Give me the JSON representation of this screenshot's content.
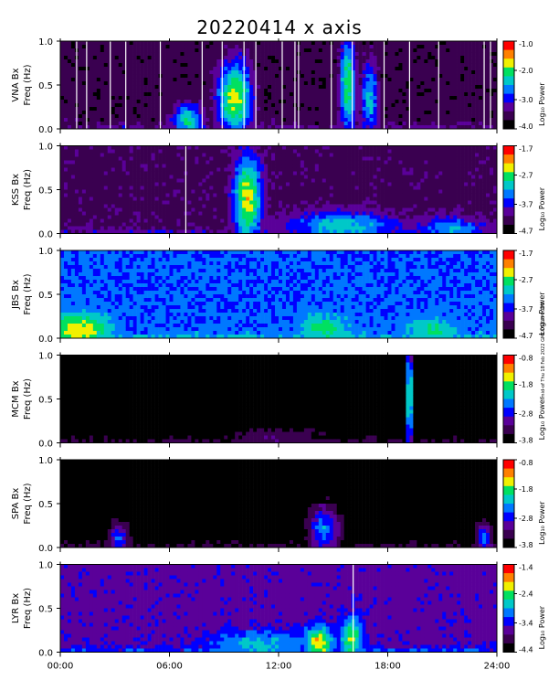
{
  "figure_title": "20220414  x axis",
  "side_note": "mid-of Thu 18 Feb 2022 GMT-058 PM GMT",
  "colors": {
    "scale": [
      "#000000",
      "#3a0050",
      "#5a0099",
      "#0000ff",
      "#0078ff",
      "#00c8c8",
      "#00e060",
      "#f0f000",
      "#ff8000",
      "#ff0000"
    ],
    "background": "#ffffff",
    "axis": "#000000",
    "gap_line": "#ffffff"
  },
  "chart_data": [
    {
      "type": "heatmap",
      "station_label": "VNA Bx",
      "ylabel": "Freq (Hz)",
      "colorbar_label": "Log₁₀ Power",
      "colorbar_ticks": [
        "-1.0",
        "-2.0",
        "-3.0",
        "-4.0"
      ],
      "colorbar_range": [
        -4.0,
        -1.0
      ],
      "x_range_hours": [
        0,
        24
      ],
      "ylim": [
        0,
        1.0
      ],
      "y_ticks": [
        "0.0",
        "0.5",
        "1.0"
      ],
      "gap_lines_hours": [
        0.9,
        1.45,
        2.75,
        3.6,
        5.5,
        7.8,
        8.9,
        10.1,
        10.75,
        12.2,
        12.9,
        13.1,
        14.9,
        16.05,
        17.8,
        19.2,
        20.8,
        23.3,
        23.65
      ],
      "background_level": -3.75,
      "events": [
        {
          "t": 9.6,
          "f": 0.35,
          "width": 2.0,
          "peak": -1.8
        },
        {
          "t": 7.0,
          "f": 0.1,
          "width": 1.8,
          "peak": -2.2
        },
        {
          "t": 15.8,
          "f": 0.5,
          "width": 0.9,
          "peak": -2.0
        },
        {
          "t": 17.0,
          "f": 0.35,
          "width": 1.0,
          "peak": -2.4
        }
      ]
    },
    {
      "type": "heatmap",
      "station_label": "KSS Bx",
      "ylabel": "Freq (Hz)",
      "colorbar_label": "Log₁₀ Power",
      "colorbar_ticks": [
        "-1.7",
        "-2.7",
        "-3.7",
        "-4.7"
      ],
      "colorbar_range": [
        -4.7,
        -1.7
      ],
      "x_range_hours": [
        0,
        24
      ],
      "ylim": [
        0,
        1.0
      ],
      "y_ticks": [
        "0.0",
        "0.5",
        "1.0"
      ],
      "gap_lines_hours": [
        6.9
      ],
      "background_level": -4.3,
      "events": [
        {
          "t": 10.3,
          "f": 0.4,
          "width": 1.6,
          "peak": -2.4
        },
        {
          "t": 15.5,
          "f": 0.08,
          "width": 6.0,
          "peak": -3.0
        },
        {
          "t": 21.5,
          "f": 0.05,
          "width": 4.0,
          "peak": -3.2
        }
      ]
    },
    {
      "type": "heatmap",
      "station_label": "JBS Bx",
      "ylabel": "Freq (Hz)",
      "colorbar_label": "Log₁₀ Power",
      "colorbar_ticks": [
        "-1.7",
        "-2.7",
        "-3.7",
        "-4.7"
      ],
      "colorbar_range": [
        -4.7,
        -1.7
      ],
      "x_range_hours": [
        0,
        24
      ],
      "ylim": [
        0,
        1.0
      ],
      "y_ticks": [
        "0.0",
        "0.5",
        "1.0"
      ],
      "gap_lines_hours": [],
      "background_level": -3.6,
      "events": [
        {
          "t": 1.0,
          "f": 0.1,
          "width": 3.5,
          "peak": -2.4
        },
        {
          "t": 14.5,
          "f": 0.1,
          "width": 3.0,
          "peak": -2.8
        },
        {
          "t": 20.5,
          "f": 0.08,
          "width": 3.0,
          "peak": -2.9
        }
      ]
    },
    {
      "type": "heatmap",
      "station_label": "MCM Bx",
      "ylabel": "Freq (Hz)",
      "colorbar_label": "Log₁₀ Power",
      "colorbar_ticks": [
        "-0.8",
        "-1.8",
        "-2.8",
        "-3.8"
      ],
      "colorbar_range": [
        -3.8,
        -0.8
      ],
      "x_range_hours": [
        0,
        24
      ],
      "ylim": [
        0,
        1.0
      ],
      "y_ticks": [
        "0.0",
        "0.5",
        "1.0"
      ],
      "gap_lines_hours": [],
      "background_level": -3.9,
      "events": [
        {
          "t": 19.2,
          "f": 0.5,
          "width": 0.4,
          "peak": -1.6
        },
        {
          "t": 12.0,
          "f": 0.05,
          "width": 8.0,
          "peak": -3.3
        }
      ]
    },
    {
      "type": "heatmap",
      "station_label": "SPA Bx",
      "ylabel": "Freq (Hz)",
      "colorbar_label": "Log₁₀ Power",
      "colorbar_ticks": [
        "-0.8",
        "-1.8",
        "-2.8",
        "-3.8"
      ],
      "colorbar_range": [
        -3.8,
        -0.8
      ],
      "x_range_hours": [
        0,
        24
      ],
      "ylim": [
        0,
        1.0
      ],
      "y_ticks": [
        "0.0",
        "0.5",
        "1.0"
      ],
      "gap_lines_hours": [],
      "background_level": -3.9,
      "events": [
        {
          "t": 3.2,
          "f": 0.1,
          "width": 1.2,
          "peak": -2.6
        },
        {
          "t": 14.5,
          "f": 0.2,
          "width": 1.8,
          "peak": -2.4
        },
        {
          "t": 23.3,
          "f": 0.1,
          "width": 1.0,
          "peak": -2.6
        }
      ]
    },
    {
      "type": "heatmap",
      "station_label": "LYR Bx",
      "ylabel": "Freq (Hz)",
      "colorbar_label": "Log₁₀ Power",
      "colorbar_ticks": [
        "-1.4",
        "-2.4",
        "-3.4",
        "-4.4"
      ],
      "colorbar_range": [
        -4.4,
        -1.4
      ],
      "x_range_hours": [
        0,
        24
      ],
      "ylim": [
        0,
        1.0
      ],
      "y_ticks": [
        "0.0",
        "0.5",
        "1.0"
      ],
      "gap_lines_hours": [
        16.1
      ],
      "background_level": -3.7,
      "events": [
        {
          "t": 14.2,
          "f": 0.1,
          "width": 1.6,
          "peak": -2.0
        },
        {
          "t": 16.0,
          "f": 0.15,
          "width": 1.2,
          "peak": -2.3
        },
        {
          "t": 11.0,
          "f": 0.08,
          "width": 6.0,
          "peak": -2.8
        }
      ]
    }
  ],
  "x_axis": {
    "tick_labels": [
      "00:00",
      "06:00",
      "12:00",
      "18:00",
      "24:00"
    ],
    "tick_hours": [
      0,
      6,
      12,
      18,
      24
    ]
  }
}
